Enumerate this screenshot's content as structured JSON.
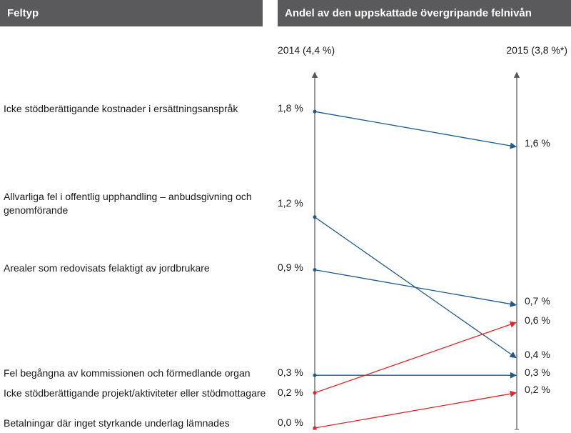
{
  "header": {
    "left": "Feltyp",
    "right": "Andel av den uppskattade övergripande felnivån"
  },
  "chart_data": {
    "type": "line",
    "x": [
      "2014 (4,4 %)",
      "2015 (3,8 %*)"
    ],
    "series": [
      {
        "name": "Icke stödberättigande kostnader i ersättningsanspråk",
        "values": [
          1.8,
          1.6
        ],
        "labels": [
          "1,8 %",
          "1,6 %"
        ],
        "color": "#1f5a8a"
      },
      {
        "name": "Allvarliga fel i offentlig upphandling – anbudsgivning och genomförande",
        "values": [
          1.2,
          0.4
        ],
        "labels": [
          "1,2 %",
          "0,4 %"
        ],
        "color": "#1f5a8a"
      },
      {
        "name": "Arealer som redovisats felaktigt av jordbrukare",
        "values": [
          0.9,
          0.7
        ],
        "labels": [
          "0,9 %",
          "0,7 %"
        ],
        "color": "#1f5a8a"
      },
      {
        "name": "Fel begångna av kommissionen och förmedlande organ",
        "values": [
          0.3,
          0.3
        ],
        "labels": [
          "0,3 %",
          "0,3 %"
        ],
        "color": "#1f5a8a"
      },
      {
        "name": "Icke stödberättigande projekt/aktiviteter eller stödmottagare",
        "values": [
          0.2,
          0.6
        ],
        "labels": [
          "0,2 %",
          "0,6 %"
        ],
        "color": "#e0262b"
      },
      {
        "name": "Betalningar där inget styrkande underlag lämnades",
        "values": [
          0.0,
          0.2
        ],
        "labels": [
          "0,0 %",
          "0,2 %"
        ],
        "color": "#e0262b"
      }
    ],
    "ylim": [
      0,
      2.0
    ],
    "axis_color": "#555555"
  }
}
